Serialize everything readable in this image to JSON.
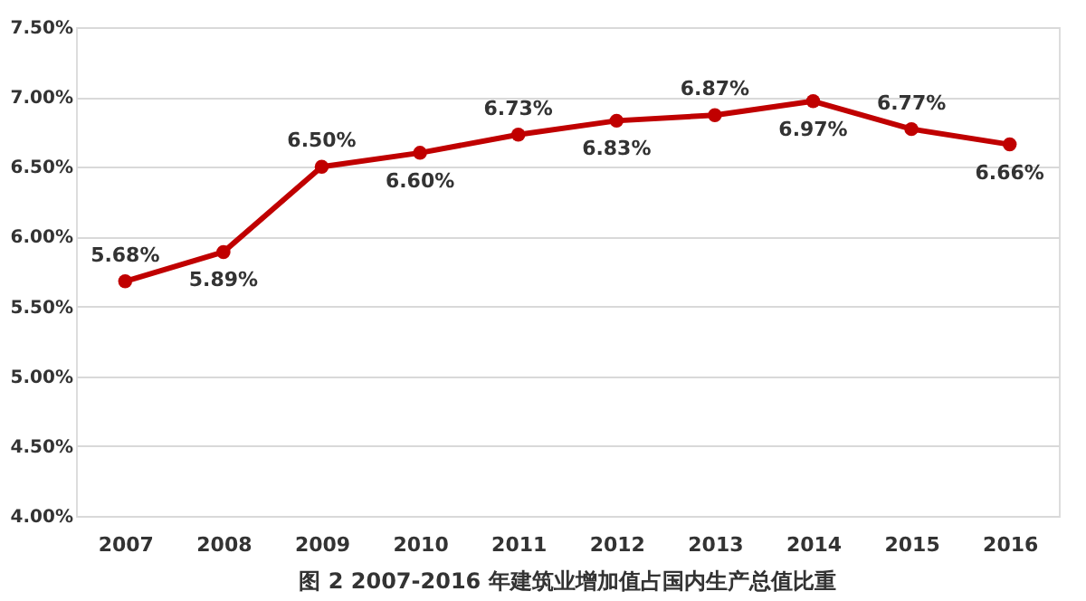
{
  "chart_data": {
    "type": "line",
    "title": "图 2  2007-2016 年建筑业增加值占国内生产总值比重",
    "categories": [
      "2007",
      "2008",
      "2009",
      "2010",
      "2011",
      "2012",
      "2013",
      "2014",
      "2015",
      "2016"
    ],
    "series": [
      {
        "color": "#c00000",
        "values": [
          5.68,
          5.89,
          6.5,
          6.6,
          6.73,
          6.83,
          6.87,
          6.97,
          6.77,
          6.66
        ],
        "value_labels": [
          "5.68%",
          "5.89%",
          "6.50%",
          "6.60%",
          "6.73%",
          "6.83%",
          "6.87%",
          "6.97%",
          "6.77%",
          "6.66%"
        ]
      }
    ],
    "ylim": [
      4.0,
      7.5
    ],
    "yticks": [
      {
        "value": 4.0,
        "label": "4.00%"
      },
      {
        "value": 4.5,
        "label": "4.50%"
      },
      {
        "value": 5.0,
        "label": "5.00%"
      },
      {
        "value": 5.5,
        "label": "5.50%"
      },
      {
        "value": 6.0,
        "label": "6.00%"
      },
      {
        "value": 6.5,
        "label": "6.50%"
      },
      {
        "value": 7.0,
        "label": "7.00%"
      },
      {
        "value": 7.5,
        "label": "7.50%"
      }
    ],
    "grid": "y",
    "marker": "circle",
    "line_style": "solid"
  }
}
